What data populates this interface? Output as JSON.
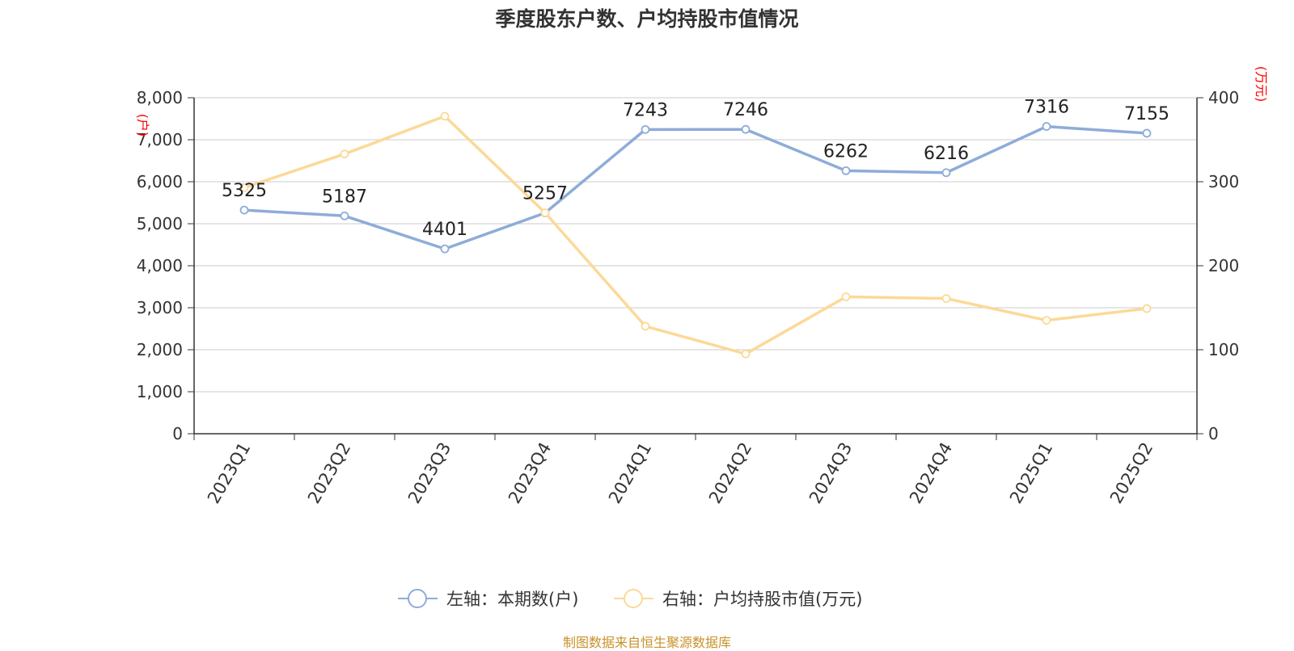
{
  "title": "季度股东户数、户均持股市值情况",
  "footer": "制图数据来自恒生聚源数据库",
  "chart_data": {
    "type": "line",
    "categories": [
      "2023Q1",
      "2023Q2",
      "2023Q3",
      "2023Q4",
      "2024Q1",
      "2024Q2",
      "2024Q3",
      "2024Q4",
      "2025Q1",
      "2025Q2"
    ],
    "series": [
      {
        "name": "左轴：本期数(户)",
        "axis": "left",
        "color": "#8eacd8",
        "values": [
          5325,
          5187,
          4401,
          5257,
          7243,
          7246,
          6262,
          6216,
          7316,
          7155
        ],
        "labels": [
          "5325",
          "5187",
          "4401",
          "5257",
          "7243",
          "7246",
          "6262",
          "6216",
          "7316",
          "7155"
        ]
      },
      {
        "name": "右轴：户均持股市值(万元)",
        "axis": "right",
        "color": "#fcd998",
        "values": [
          293,
          333,
          378,
          263,
          128,
          95,
          163,
          161,
          135,
          149
        ]
      }
    ],
    "y_left": {
      "unit": "(户)",
      "ylim": [
        0,
        8000
      ],
      "ticks": [
        0,
        1000,
        2000,
        3000,
        4000,
        5000,
        6000,
        7000,
        8000
      ],
      "tick_labels": [
        "0",
        "1,000",
        "2,000",
        "3,000",
        "4,000",
        "5,000",
        "6,000",
        "7,000",
        "8,000"
      ]
    },
    "y_right": {
      "unit": "(万元)",
      "ylim": [
        0,
        400
      ],
      "ticks": [
        0,
        100,
        200,
        300,
        400
      ],
      "tick_labels": [
        "0",
        "100",
        "200",
        "300",
        "400"
      ]
    },
    "grid": true,
    "legend_position": "bottom"
  }
}
